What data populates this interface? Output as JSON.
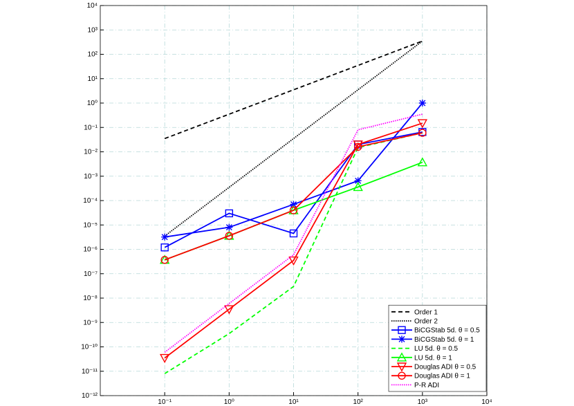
{
  "chart_data": {
    "type": "line",
    "xscale": "log",
    "yscale": "log",
    "grid": true,
    "legend": "lower right",
    "xlim": [
      0.01,
      10000
    ],
    "xticks": [
      {
        "value": 0.1,
        "label": "10⁻¹"
      },
      {
        "value": 1,
        "label": "10⁰"
      },
      {
        "value": 10,
        "label": "10¹"
      },
      {
        "value": 100,
        "label": "10²"
      },
      {
        "value": 1000,
        "label": "10³"
      },
      {
        "value": 10000,
        "label": "10⁴"
      }
    ],
    "ylim": [
      1e-12,
      10000
    ],
    "yticks": [
      {
        "value": 1e-12,
        "label": "10⁻¹²"
      },
      {
        "value": 1e-11,
        "label": "10⁻¹¹"
      },
      {
        "value": 1e-10,
        "label": "10⁻¹⁰"
      },
      {
        "value": 1e-09,
        "label": "10⁻⁹"
      },
      {
        "value": 1e-08,
        "label": "10⁻⁸"
      },
      {
        "value": 1e-07,
        "label": "10⁻⁷"
      },
      {
        "value": 1e-06,
        "label": "10⁻⁶"
      },
      {
        "value": 1e-05,
        "label": "10⁻⁵"
      },
      {
        "value": 0.0001,
        "label": "10⁻⁴"
      },
      {
        "value": 0.001,
        "label": "10⁻³"
      },
      {
        "value": 0.01,
        "label": "10⁻²"
      },
      {
        "value": 0.1,
        "label": "10⁻¹"
      },
      {
        "value": 1,
        "label": "10⁰"
      },
      {
        "value": 10,
        "label": "10¹"
      },
      {
        "value": 100,
        "label": "10²"
      },
      {
        "value": 1000,
        "label": "10³"
      },
      {
        "value": 10000,
        "label": "10⁴"
      }
    ],
    "x": [
      0.1,
      1,
      10,
      100,
      1000
    ],
    "series": [
      {
        "name": "Order 1",
        "color": "#000000",
        "dash": "6 4",
        "marker": "none",
        "values": [
          0.035,
          0.35,
          3.5,
          35,
          350
        ]
      },
      {
        "name": "Order 2",
        "color": "#000000",
        "dash": "1.5 1.5",
        "marker": "none",
        "values": [
          3.5e-06,
          0.00035,
          0.035,
          3.5,
          350
        ]
      },
      {
        "name": "BiCGStab 5d.  θ = 0.5",
        "color": "#0000ff",
        "dash": "none",
        "marker": "square",
        "values": [
          1.2e-06,
          3e-05,
          4.5e-06,
          0.02,
          0.065
        ]
      },
      {
        "name": "BiCGStab 5d.  θ = 1",
        "color": "#0000ff",
        "dash": "none",
        "marker": "star",
        "values": [
          3.2e-06,
          8e-06,
          7e-05,
          0.00065,
          1.0
        ]
      },
      {
        "name": "LU 5d. θ = 0.5",
        "color": "#00ff00",
        "dash": "6 4",
        "marker": "none",
        "values": [
          8e-12,
          3.5e-10,
          3e-08,
          0.015,
          0.06
        ]
      },
      {
        "name": "LU 5d. θ = 1",
        "color": "#00ff00",
        "dash": "none",
        "marker": "triangle-up",
        "values": [
          3.7e-07,
          3.6e-06,
          4e-05,
          0.00036,
          0.0037
        ]
      },
      {
        "name": "Douglas ADI θ = 0.5",
        "color": "#ff0000",
        "dash": "none",
        "marker": "triangle-down",
        "values": [
          3.5e-11,
          3.5e-09,
          3.5e-07,
          0.02,
          0.15
        ]
      },
      {
        "name": "Douglas ADI θ = 1",
        "color": "#ff0000",
        "dash": "none",
        "marker": "circle",
        "values": [
          3.7e-07,
          3.6e-06,
          4e-05,
          0.016,
          0.06
        ]
      },
      {
        "name": "P-R ADI",
        "color": "#ff00ff",
        "dash": "1.5 1.5",
        "marker": "none",
        "values": [
          6e-11,
          6e-09,
          6e-07,
          0.08,
          0.35
        ]
      }
    ]
  }
}
